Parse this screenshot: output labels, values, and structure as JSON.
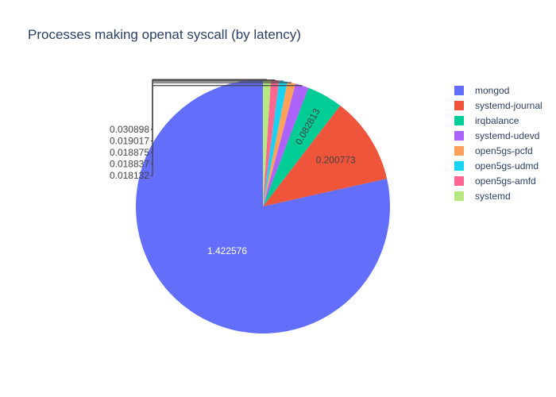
{
  "chart_data": {
    "type": "pie",
    "title": "Processes making openat syscall (by latency)",
    "sort": "descending",
    "direction": "counterclockwise",
    "start_angle_deg": 0,
    "legend_position": "right",
    "slices": [
      {
        "label": "mongod",
        "value": 1.422576,
        "color": "#636efa",
        "text": "1.422576",
        "text_color": "#ffffff",
        "text_position": "inside"
      },
      {
        "label": "systemd-journal",
        "value": 0.200773,
        "color": "#EF553B",
        "text": "0.200773",
        "text_color": "#444444",
        "text_position": "inside"
      },
      {
        "label": "irqbalance",
        "value": 0.082813,
        "color": "#00cc96",
        "text": "0.082813",
        "text_color": "#444444",
        "text_position": "inside"
      },
      {
        "label": "systemd-udevd",
        "value": 0.030898,
        "color": "#ab63fa",
        "text": "0.030898",
        "text_color": "#444444",
        "text_position": "outside"
      },
      {
        "label": "open5gs-pcfd",
        "value": 0.019017,
        "color": "#FFA15A",
        "text": "0.019017",
        "text_color": "#444444",
        "text_position": "outside"
      },
      {
        "label": "open5gs-udmd",
        "value": 0.018875,
        "color": "#19d3f3",
        "text": "0.018875",
        "text_color": "#444444",
        "text_position": "outside"
      },
      {
        "label": "open5gs-amfd",
        "value": 0.018837,
        "color": "#FF6692",
        "text": "0.018837",
        "text_color": "#444444",
        "text_position": "outside"
      },
      {
        "label": "systemd",
        "value": 0.018132,
        "color": "#B6E880",
        "text": "0.018132",
        "text_color": "#444444",
        "text_position": "outside"
      }
    ]
  }
}
